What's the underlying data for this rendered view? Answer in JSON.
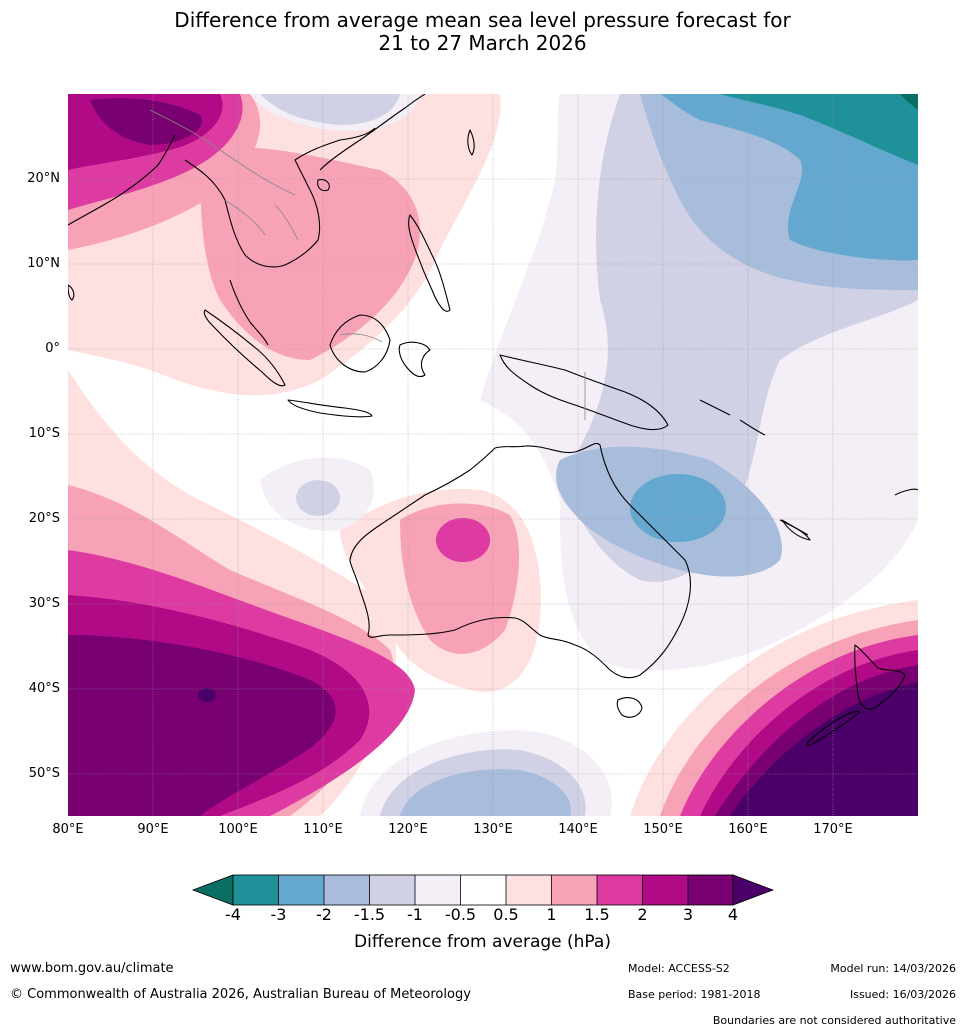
{
  "title": {
    "line1": "Difference from average mean sea level pressure forecast for",
    "line2": "21 to 27 March 2026"
  },
  "map": {
    "region": "Australia, Indian Ocean and Western Pacific",
    "lat_ticks": [
      "20°N",
      "10°N",
      "0°",
      "10°S",
      "20°S",
      "30°S",
      "40°S",
      "50°S"
    ],
    "lon_ticks": [
      "80°E",
      "90°E",
      "100°E",
      "110°E",
      "120°E",
      "130°E",
      "140°E",
      "150°E",
      "160°E",
      "170°E"
    ]
  },
  "colorbar": {
    "title": "Difference from average (hPa)",
    "labels": [
      "-4",
      "-3",
      "-2",
      "-1.5",
      "-1",
      "-0.5",
      "0.5",
      "1",
      "1.5",
      "2",
      "3",
      "4"
    ],
    "colors": [
      "#0b6e63",
      "#1f9199",
      "#64a8cf",
      "#a8bcdc",
      "#d1d1e6",
      "#f4eef6",
      "#ffffff",
      "#fde0df",
      "#f8a2b8",
      "#dd3ba1",
      "#b00a86",
      "#780070",
      "#4a0068"
    ]
  },
  "footer": {
    "website": "www.bom.gov.au/climate",
    "copyright": "© Commonwealth of Australia 2026, Australian Bureau of Meteorology",
    "model": "Model: ACCESS-S2",
    "base_period": "Base period: 1981-2018",
    "model_run": "Model run: 14/03/2026",
    "issued": "Issued: 16/03/2026",
    "disclaimer": "Boundaries are not considered authoritative"
  }
}
